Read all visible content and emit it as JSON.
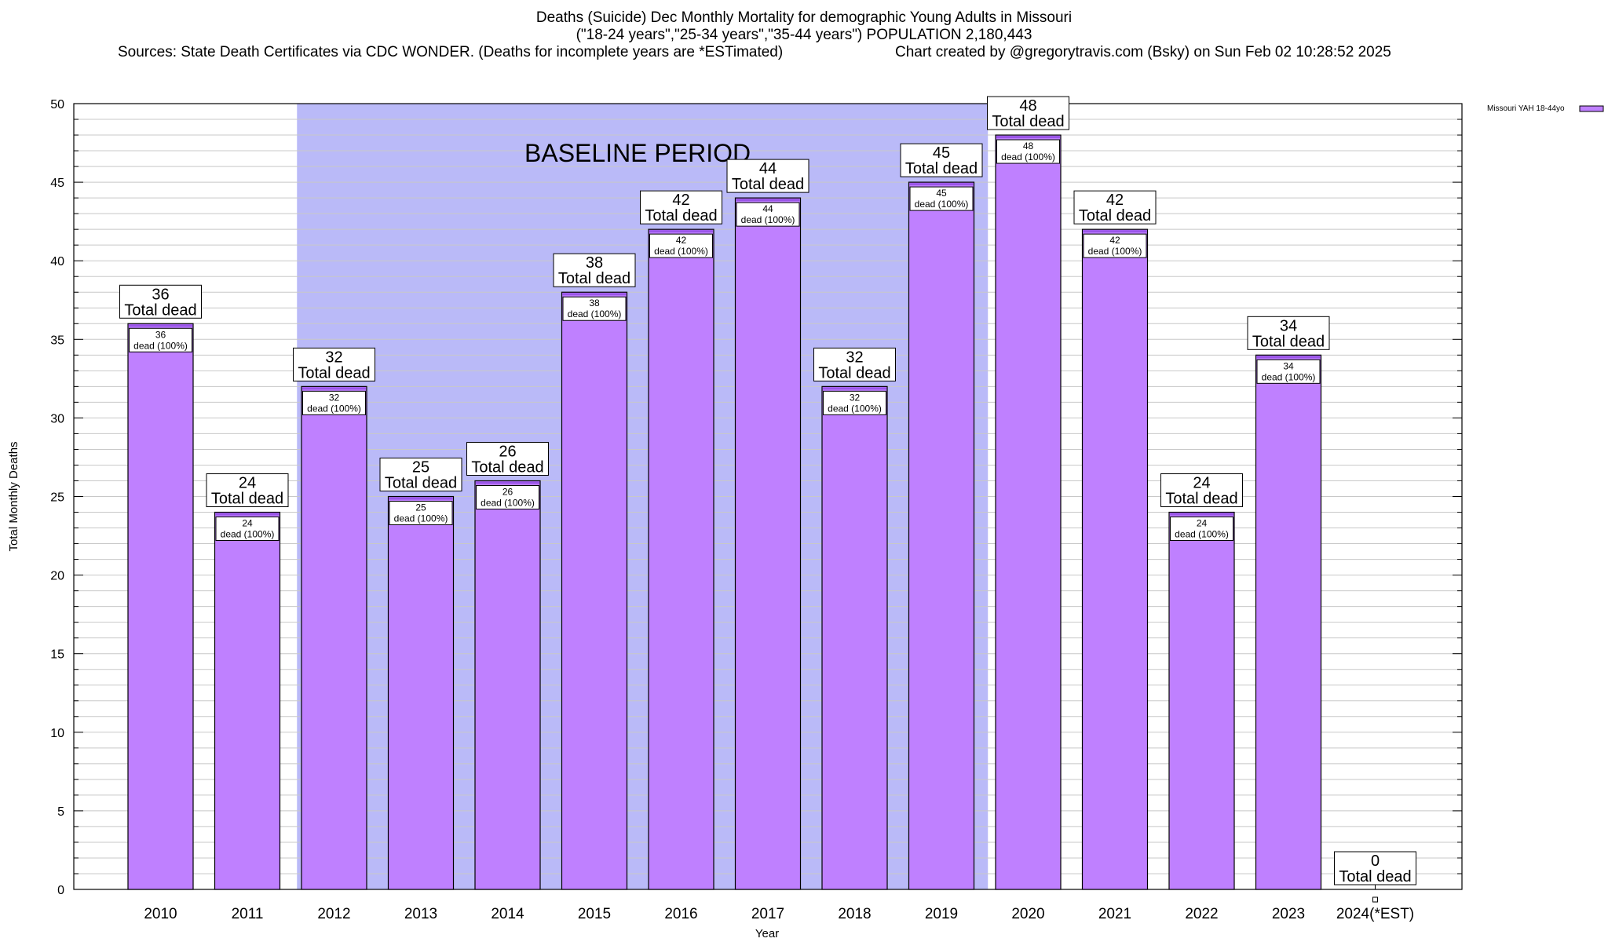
{
  "chart_data": {
    "type": "bar",
    "title_lines": [
      "Deaths (Suicide) Dec Monthly Mortality for demographic Young Adults in Missouri",
      "(\"18-24 years\",\"25-34 years\",\"35-44 years\") POPULATION 2,180,443"
    ],
    "sources": "Sources: State Death Certificates via CDC WONDER. (Deaths for incomplete years are *ESTimated)",
    "created": "Chart created by @gregorytravis.com (Bsky) on Sun Feb 02 10:28:52 2025",
    "xlabel": "Year",
    "ylabel": "Total Monthly Deaths",
    "ylim": [
      0,
      50
    ],
    "ytick_step": 5,
    "yminor_step": 1,
    "grid": true,
    "legend_placement": "top-right (outside plot)",
    "categories": [
      "2010",
      "2011",
      "2012",
      "2013",
      "2014",
      "2015",
      "2016",
      "2017",
      "2018",
      "2019",
      "2020",
      "2021",
      "2022",
      "2023",
      "2024(*EST)"
    ],
    "series": [
      {
        "name": "Missouri YAH 18-44yo",
        "values": [
          36,
          24,
          32,
          25,
          26,
          38,
          42,
          44,
          32,
          45,
          48,
          42,
          24,
          34,
          0
        ],
        "inner_labels": [
          "36\ndead (100%)",
          "24\ndead (100%)",
          "32\ndead (100%)",
          "25\ndead (100%)",
          "26\ndead (100%)",
          "38\ndead (100%)",
          "42\ndead (100%)",
          "44\ndead (100%)",
          "32\ndead (100%)",
          "45\ndead (100%)",
          "48\ndead (100%)",
          "42\ndead (100%)",
          "24\ndead (100%)",
          "34\ndead (100%)",
          ""
        ]
      }
    ],
    "total_labels": [
      "36\nTotal dead",
      "24\nTotal dead",
      "32\nTotal dead",
      "25\nTotal dead",
      "26\nTotal dead",
      "38\nTotal dead",
      "42\nTotal dead",
      "44\nTotal dead",
      "32\nTotal dead",
      "45\nTotal dead",
      "48\nTotal dead",
      "42\nTotal dead",
      "24\nTotal dead",
      "34\nTotal dead",
      "0\nTotal dead"
    ],
    "annotation": {
      "text": "BASELINE PERIOD",
      "start_category": "2012",
      "end_category": "2019"
    },
    "colors": {
      "bar_fill": "#bf80ff",
      "bar_top": "#9a55e8",
      "baseline_fill": "#babaf8",
      "grid": "#c8c8c8"
    }
  }
}
